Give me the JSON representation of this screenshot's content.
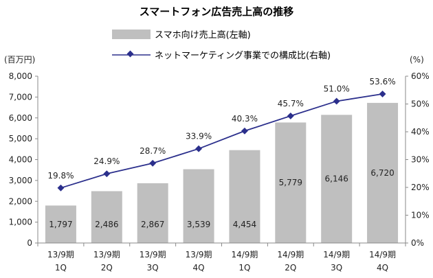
{
  "chart_data": {
    "type": "bar",
    "title": "スマートフォン広告売上高の推移",
    "categories": [
      [
        "13/9期",
        "1Q"
      ],
      [
        "13/9期",
        "2Q"
      ],
      [
        "13/9期",
        "3Q"
      ],
      [
        "13/9期",
        "4Q"
      ],
      [
        "14/9期",
        "1Q"
      ],
      [
        "14/9期",
        "2Q"
      ],
      [
        "14/9期",
        "3Q"
      ],
      [
        "14/9期",
        "4Q"
      ]
    ],
    "series": [
      {
        "name": "スマホ向け売上高(左軸)",
        "type": "bar",
        "axis": "left",
        "values": [
          1797,
          2486,
          2867,
          3539,
          4454,
          5779,
          6146,
          6720
        ],
        "labels": [
          "1,797",
          "2,486",
          "2,867",
          "3,539",
          "4,454",
          "5,779",
          "6,146",
          "6,720"
        ]
      },
      {
        "name": "ネットマーケティング事業での構成比(右軸)",
        "type": "line",
        "axis": "right",
        "values": [
          19.8,
          24.9,
          28.7,
          33.9,
          40.3,
          45.7,
          51.0,
          53.6
        ],
        "labels": [
          "19.8%",
          "24.9%",
          "28.7%",
          "33.9%",
          "40.3%",
          "45.7%",
          "51.0%",
          "53.6%"
        ]
      }
    ],
    "y_left": {
      "label": "(百万円)",
      "range": [
        0,
        8000
      ],
      "ticks": [
        "0",
        "1,000",
        "2,000",
        "3,000",
        "4,000",
        "5,000",
        "6,000",
        "7,000",
        "8,000"
      ]
    },
    "y_right": {
      "label": "(%)",
      "range": [
        0,
        60
      ],
      "ticks": [
        "0%",
        "10%",
        "20%",
        "30%",
        "40%",
        "50%",
        "60%"
      ]
    },
    "colors": {
      "bar": "#bfbfbf",
      "line": "#2b2f8c",
      "axis": "#888888"
    },
    "legend_position": "top-center"
  }
}
